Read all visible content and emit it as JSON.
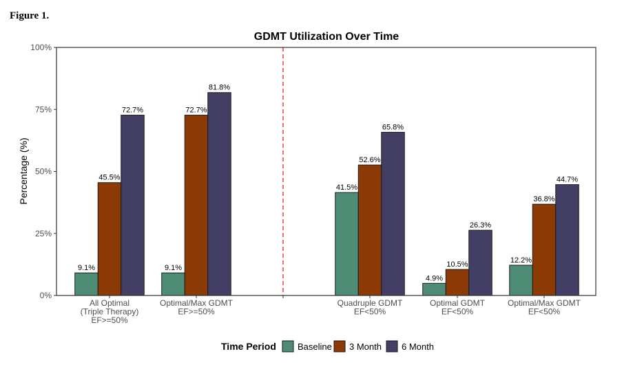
{
  "figure_label": "Figure 1.",
  "chart_data": {
    "type": "bar",
    "title": "GDMT Utilization Over Time",
    "xlabel": "",
    "ylabel": "Percentage (%)",
    "ylim": [
      0,
      100
    ],
    "yticks": [
      0,
      25,
      50,
      75,
      100
    ],
    "ytick_labels": [
      "0%",
      "25%",
      "50%",
      "75%",
      "100%"
    ],
    "categories": [
      [
        "All Optimal",
        "(Triple Therapy)",
        "EF>=50%"
      ],
      [
        "Optimal/Max GDMT",
        "EF>=50%"
      ],
      [
        "Quadruple GDMT",
        "EF<50%"
      ],
      [
        "Optimal GDMT",
        "EF<50%"
      ],
      [
        "Optimal/Max GDMT",
        "EF<50%"
      ]
    ],
    "series": [
      {
        "name": "Baseline",
        "color": "#4e8c76",
        "values": [
          9.1,
          9.1,
          41.5,
          4.9,
          12.2
        ],
        "labels": [
          "9.1%",
          "9.1%",
          "41.5%",
          "4.9%",
          "12.2%"
        ]
      },
      {
        "name": "3 Month",
        "color": "#8b3a05",
        "values": [
          45.5,
          72.7,
          52.6,
          10.5,
          36.8
        ],
        "labels": [
          "45.5%",
          "72.7%",
          "52.6%",
          "10.5%",
          "36.8%"
        ]
      },
      {
        "name": "6 Month",
        "color": "#433e63",
        "values": [
          72.7,
          81.8,
          65.8,
          26.3,
          44.7
        ],
        "labels": [
          "72.7%",
          "81.8%",
          "65.8%",
          "26.3%",
          "44.7%"
        ]
      }
    ],
    "divider_color": "#e8413c",
    "legend": {
      "title": "Time Period",
      "position": "bottom"
    },
    "grid": false
  }
}
